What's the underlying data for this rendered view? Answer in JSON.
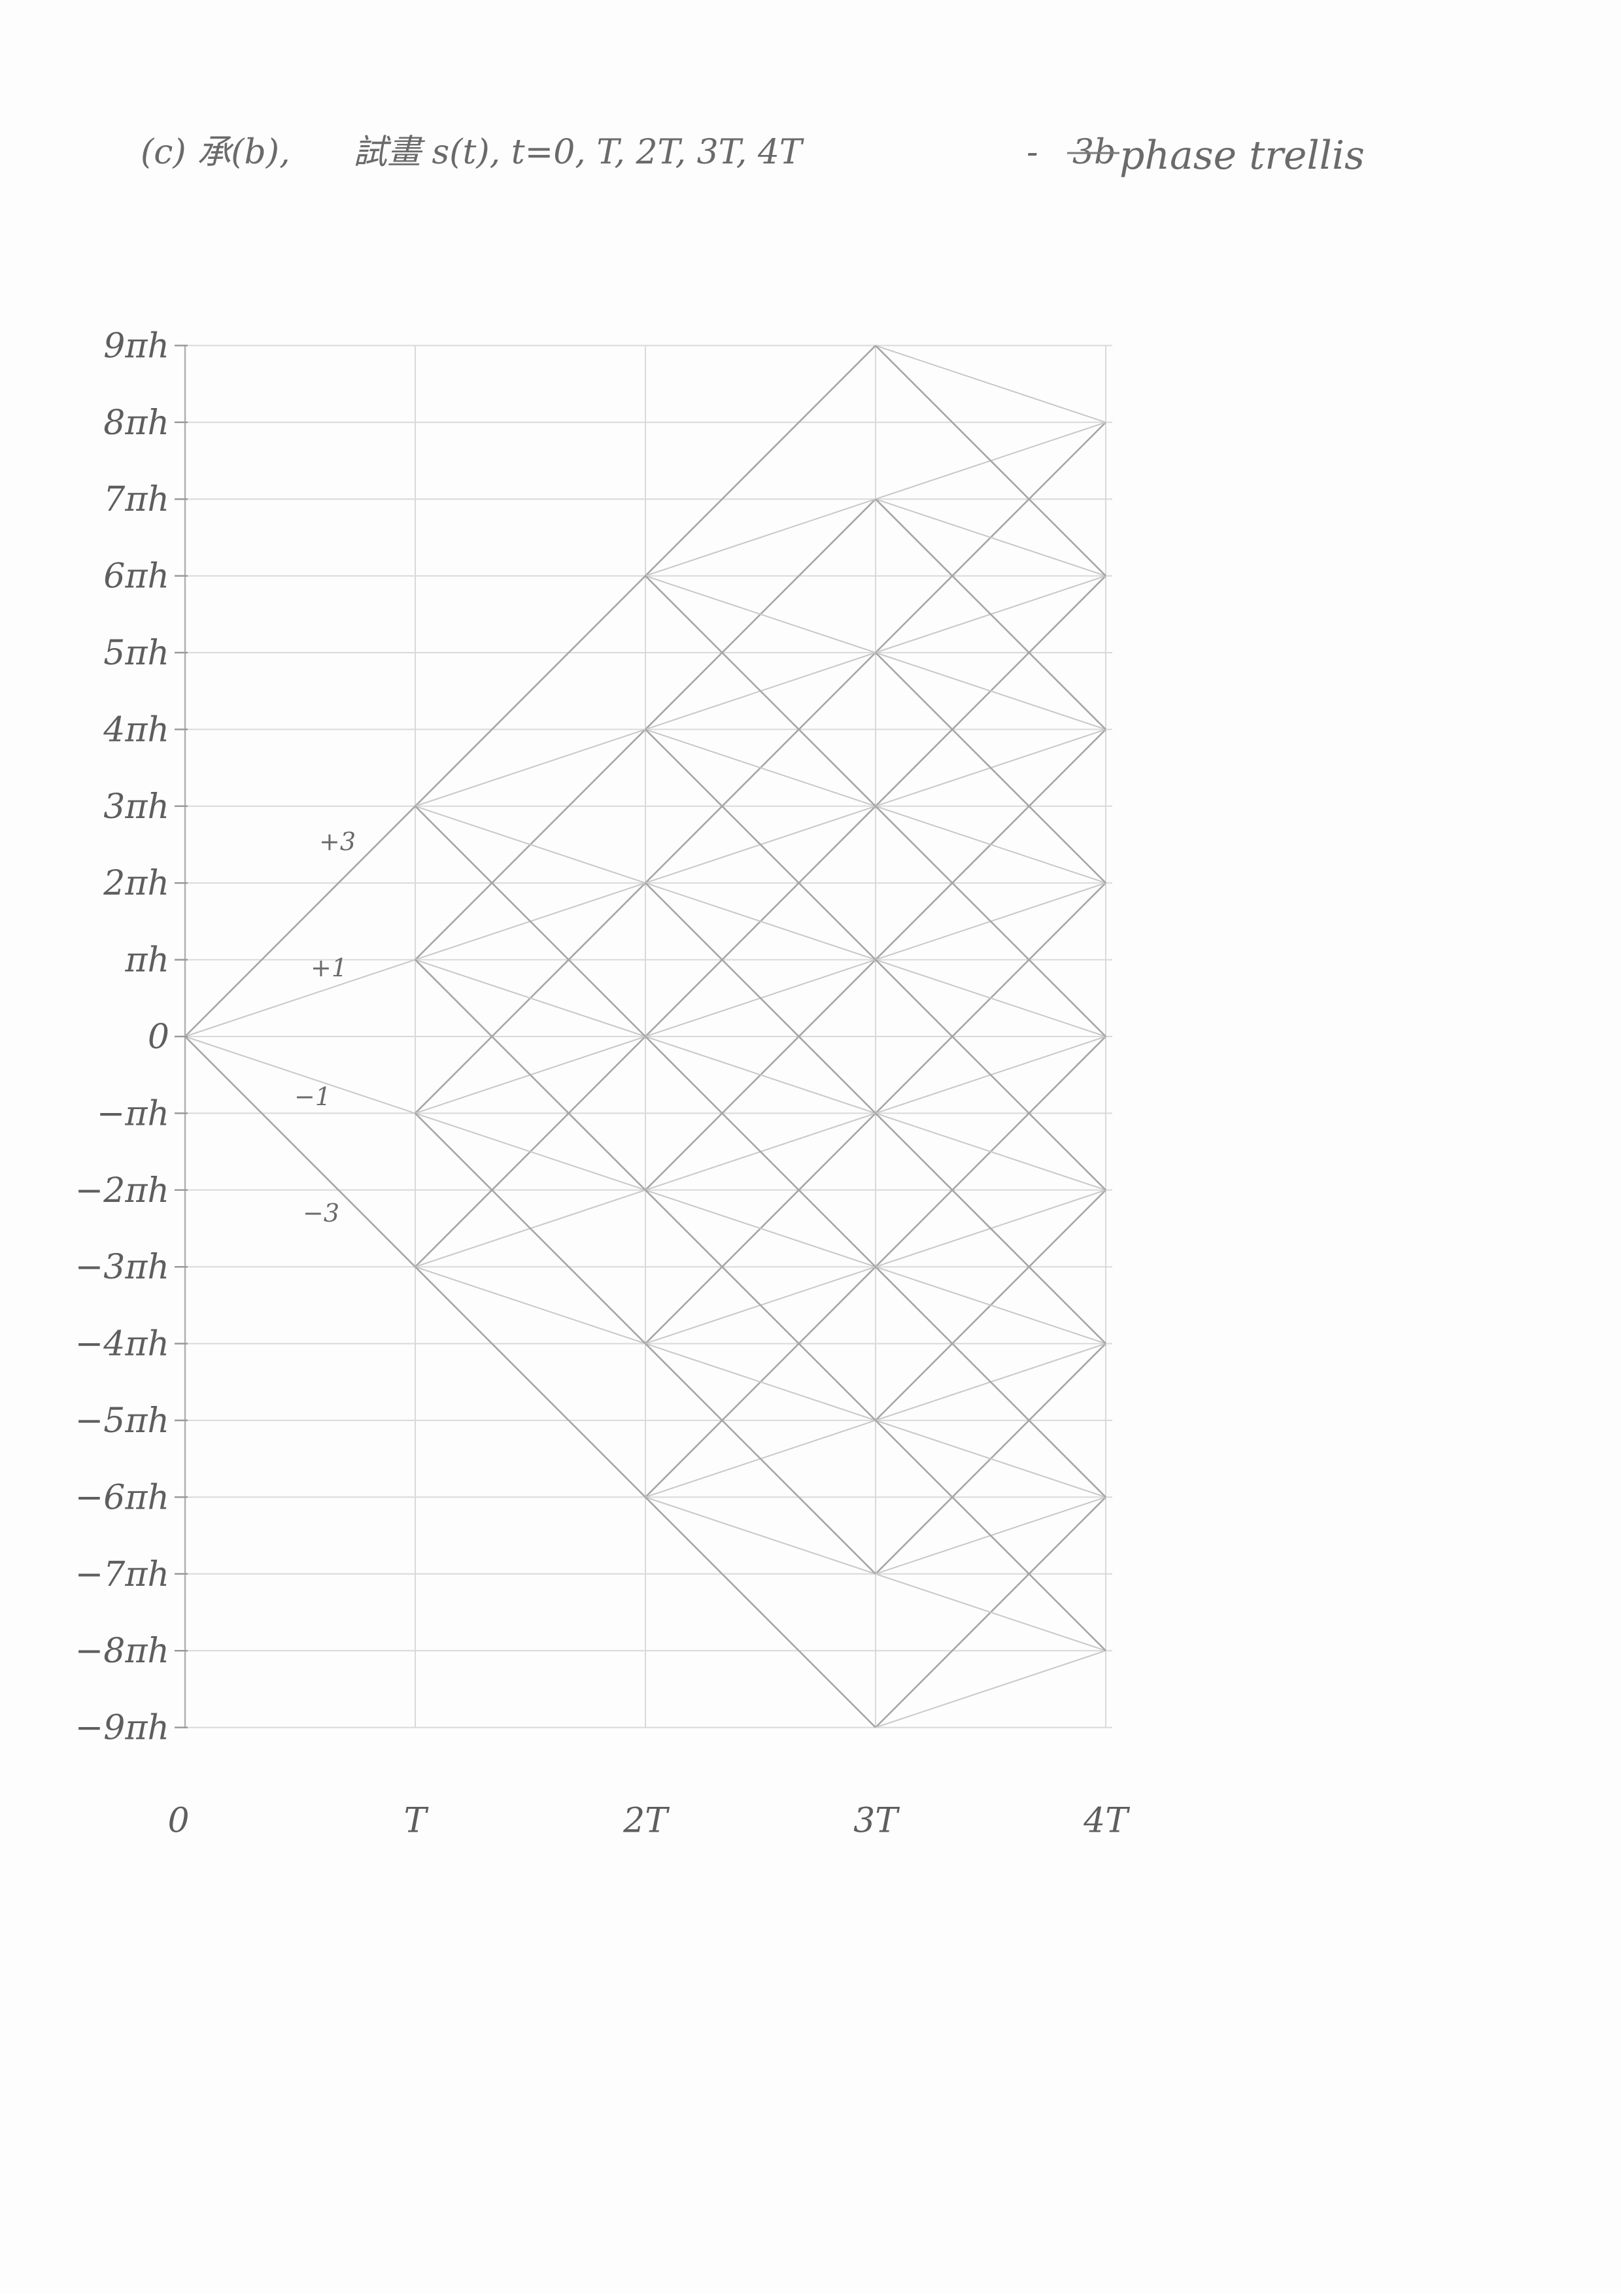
{
  "title": {
    "prefix": "(c) 承(b),",
    "middle": "試畫 s(t),  t=0, T, 2T, 3T, 4T",
    "struck": "3b",
    "suffix": "phase trellis",
    "dash": "-"
  },
  "y_tick_labels": [
    "9πh",
    "8πh",
    "7πh",
    "6πh",
    "5πh",
    "4πh",
    "3πh",
    "2πh",
    "πh",
    "0",
    "−πh",
    "−2πh",
    "−3πh",
    "−4πh",
    "−5πh",
    "−6πh",
    "−7πh",
    "−8πh",
    "−9πh"
  ],
  "x_tick_labels": [
    "0",
    "T",
    "2T",
    "3T",
    "4T"
  ],
  "branch_labels": [
    "+3",
    "+1",
    "−1",
    "−3"
  ],
  "colors": {
    "pencil": "#5e5e5e",
    "grid": "#d9d9d9",
    "edge_light": "#c8c8c8",
    "edge_dark": "#a6a6a6"
  },
  "chart_data": {
    "type": "diagram",
    "x_axis": {
      "labels": [
        "0",
        "T",
        "2T",
        "3T",
        "4T"
      ],
      "values": [
        0,
        1,
        2,
        3,
        4
      ]
    },
    "y_axis": {
      "unit": "πh",
      "range": [
        -9,
        9
      ],
      "step": 1
    },
    "symbol_values": [
      3,
      1,
      -1,
      -3
    ],
    "nodes_per_time": [
      [
        0
      ],
      [
        -3,
        -1,
        1,
        3
      ],
      [
        -6,
        -4,
        -2,
        0,
        2,
        4,
        6
      ],
      [
        -9,
        -7,
        -5,
        -3,
        -1,
        1,
        3,
        5,
        7,
        9
      ],
      [
        -8,
        -6,
        -4,
        -2,
        0,
        2,
        4,
        6,
        8
      ]
    ],
    "branches": "from every node at time t to phase + d (d in +3, +1, −1, −3) at time t+1, within the ±9πh range"
  }
}
